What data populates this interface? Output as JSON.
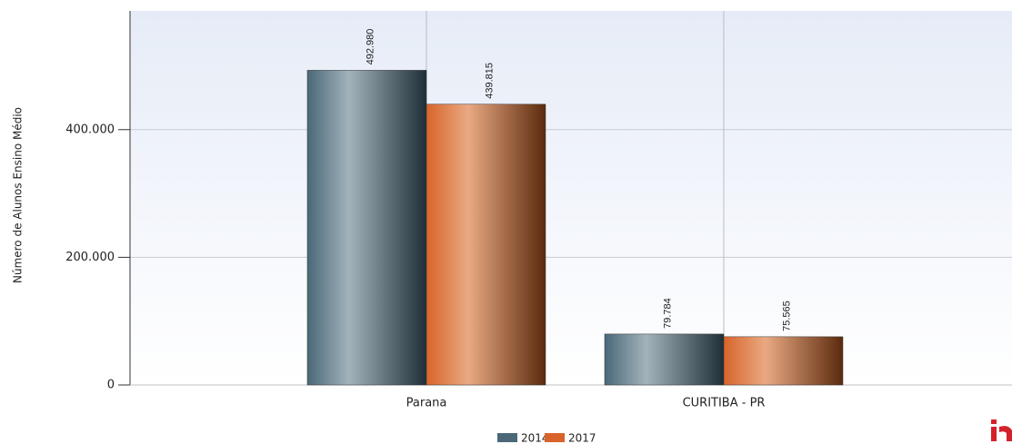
{
  "chart_data": {
    "type": "bar",
    "y_axis_label": "Número de Alunos Ensino Médio",
    "categories": [
      "Parana",
      "CURITIBA - PR"
    ],
    "series": [
      {
        "name": "2014",
        "color": "#4a6878",
        "values": [
          492980,
          79784
        ],
        "value_labels": [
          "492.980",
          "79.784"
        ]
      },
      {
        "name": "2017",
        "color": "#d8642a",
        "values": [
          439815,
          75565
        ],
        "value_labels": [
          "439.815",
          "75.565"
        ]
      }
    ],
    "ylim": [
      0,
      586000
    ],
    "yticks": [
      0,
      {
        "value": 200000,
        "label": "200.000"
      },
      {
        "value": 400000,
        "label": "400.000"
      }
    ],
    "grid": true
  }
}
